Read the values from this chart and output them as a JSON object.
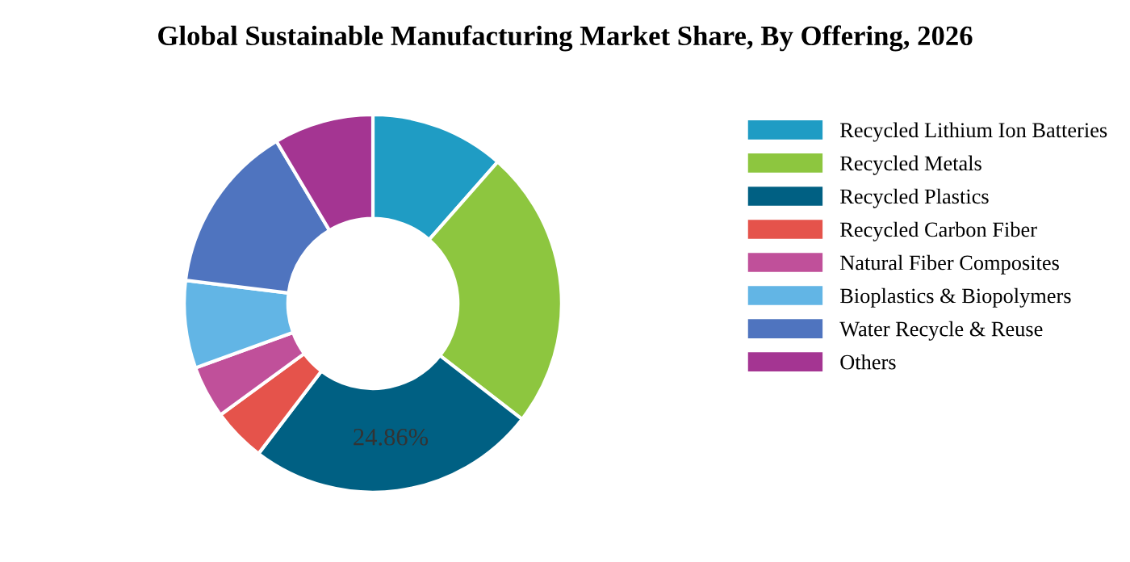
{
  "chart_data": {
    "type": "donut",
    "title": "Global Sustainable Manufacturing Market Share, By Offering, 2026",
    "categories": [
      "Recycled Lithium Ion Batteries",
      "Recycled Metals",
      "Recycled Plastics",
      "Recycled Carbon Fiber",
      "Natural Fiber Composites",
      "Bioplastics & Biopolymers",
      "Water Recycle & Reuse",
      "Others"
    ],
    "values": [
      11.5,
      24.0,
      24.86,
      4.6,
      4.5,
      7.5,
      14.5,
      8.54
    ],
    "colors": [
      "#1f9cc4",
      "#8dc63f",
      "#006083",
      "#e5534b",
      "#c0509a",
      "#62b5e5",
      "#4f74bf",
      "#a43592"
    ],
    "value_labels": [
      null,
      null,
      "24.86%",
      null,
      null,
      null,
      null,
      null
    ],
    "legend": "right"
  }
}
